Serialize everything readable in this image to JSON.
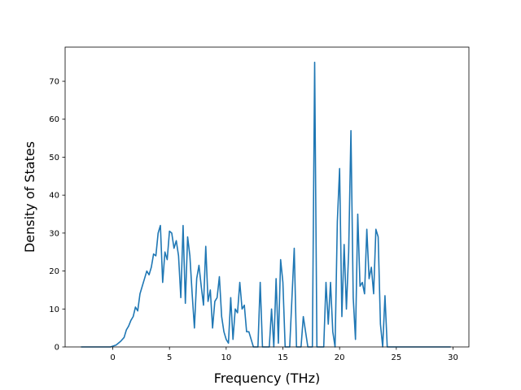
{
  "chart_data": {
    "type": "line",
    "title": "",
    "xlabel": "Frequency (THz)",
    "ylabel": "Density of States",
    "xlim": [
      -4.2,
      31.4
    ],
    "ylim": [
      0,
      79
    ],
    "xticks": [
      0,
      5,
      10,
      15,
      20,
      25,
      30
    ],
    "yticks": [
      0,
      10,
      20,
      30,
      40,
      50,
      60,
      70
    ],
    "grid": false,
    "legend": "none",
    "series": [
      {
        "color": "#1f77b4",
        "x": [
          -2.8,
          -0.2,
          0.3,
          0.7,
          1.0,
          1.2,
          1.4,
          1.6,
          1.8,
          2.0,
          2.2,
          2.4,
          2.6,
          2.8,
          3.0,
          3.2,
          3.4,
          3.6,
          3.8,
          4.0,
          4.2,
          4.4,
          4.6,
          4.8,
          5.0,
          5.2,
          5.4,
          5.6,
          5.8,
          6.0,
          6.2,
          6.4,
          6.6,
          6.8,
          7.0,
          7.2,
          7.4,
          7.6,
          7.8,
          8.0,
          8.2,
          8.4,
          8.6,
          8.8,
          9.0,
          9.2,
          9.4,
          9.6,
          9.8,
          10.0,
          10.2,
          10.4,
          10.6,
          10.8,
          11.0,
          11.2,
          11.4,
          11.6,
          11.8,
          12.0,
          12.4,
          12.8,
          13.0,
          13.2,
          13.4,
          13.8,
          14.0,
          14.2,
          14.4,
          14.6,
          14.8,
          15.0,
          15.2,
          15.4,
          15.6,
          16.0,
          16.2,
          16.4,
          16.6,
          16.8,
          17.2,
          17.6,
          17.8,
          18.0,
          18.2,
          18.6,
          18.8,
          19.0,
          19.2,
          19.4,
          19.6,
          19.8,
          20.0,
          20.2,
          20.4,
          20.6,
          20.8,
          21.0,
          21.2,
          21.4,
          21.6,
          21.8,
          22.0,
          22.2,
          22.4,
          22.6,
          22.8,
          23.0,
          23.2,
          23.4,
          23.6,
          23.8,
          24.0,
          24.2,
          24.4,
          24.6,
          24.8,
          25.0,
          25.4,
          26.0,
          27.0,
          28.0,
          29.0,
          29.8
        ],
        "y": [
          0,
          0,
          0.5,
          1.5,
          2.5,
          4.5,
          5.5,
          7,
          8,
          10.5,
          9.5,
          14,
          16,
          18,
          20,
          19,
          21,
          24.5,
          24,
          30,
          32,
          17,
          25,
          23,
          30.5,
          30,
          26,
          28,
          24,
          13,
          32,
          11.5,
          29,
          24,
          14,
          5,
          18,
          21.5,
          16,
          11,
          26.5,
          12,
          15,
          5,
          12,
          13,
          18.5,
          8,
          4,
          2,
          1,
          13,
          2,
          10,
          9,
          17,
          10,
          11,
          4,
          4,
          0,
          0,
          17,
          0,
          0,
          0,
          10,
          0,
          18,
          1,
          23,
          17,
          0,
          0,
          0,
          26,
          0,
          0,
          0,
          8,
          0,
          0,
          75,
          0,
          0,
          0,
          17,
          6,
          17,
          4,
          0,
          33,
          47,
          8,
          27,
          10,
          25,
          57,
          13,
          2,
          35,
          16,
          17,
          14,
          31,
          18,
          21,
          14,
          31,
          29,
          6,
          0,
          13.5,
          0,
          0,
          0,
          0,
          0,
          0,
          0,
          0,
          0,
          0,
          0
        ]
      }
    ]
  }
}
